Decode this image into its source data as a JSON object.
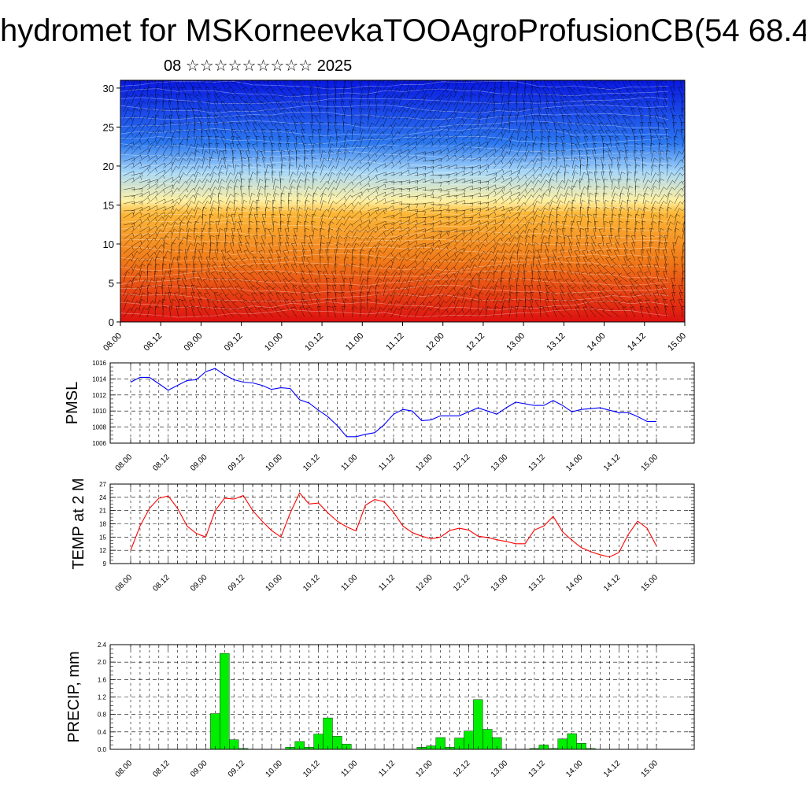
{
  "title": "hydromet for MSKorneevkaTOOAgroProfusionCB(54 68.4",
  "subtitle": "08 ☆☆☆☆☆☆☆☆☆ 2025",
  "chart_data": [
    {
      "type": "heatmap",
      "title": "",
      "x_tick_labels": [
        "08.00",
        "08.12",
        "09.00",
        "09.12",
        "10.00",
        "10.12",
        "11.00",
        "11.12",
        "12.00",
        "12.12",
        "13.00",
        "13.12",
        "14.00",
        "14.12",
        "15.00"
      ],
      "ylim": [
        0,
        31
      ],
      "y_ticks": [
        0,
        5,
        10,
        15,
        20,
        25,
        30
      ],
      "colormap": [
        "#dd1010",
        "#f07818",
        "#fcb838",
        "#fff0a0",
        "#a8d8f8",
        "#2c78f0",
        "#0818e0"
      ],
      "overlay": "wind barbs",
      "grid": false
    },
    {
      "type": "line",
      "ylabel": "PMSL",
      "ylim": [
        1006,
        1016
      ],
      "y_ticks": [
        1006,
        1008,
        1010,
        1012,
        1014,
        1016
      ],
      "x_tick_labels": [
        "08.00",
        "08.12",
        "09.00",
        "09.12",
        "10.00",
        "10.12",
        "11.00",
        "11.12",
        "12.00",
        "12.12",
        "13.00",
        "13.12",
        "14.00",
        "14.12",
        "15.00"
      ],
      "color": "#0000ff",
      "grid": true,
      "x": [
        0,
        3,
        6,
        9,
        12,
        15,
        18,
        21,
        24,
        27,
        30,
        33,
        36,
        39,
        42,
        45,
        48,
        51,
        54,
        57,
        60,
        63,
        66,
        69,
        72,
        75,
        78,
        81,
        84,
        87,
        90,
        93,
        96,
        99,
        102,
        105,
        108,
        111,
        114,
        117,
        120,
        123,
        126,
        129,
        132,
        135,
        138,
        141,
        144,
        147,
        150,
        153,
        156,
        159,
        162,
        165,
        168
      ],
      "y": [
        1013.6,
        1014.2,
        1014.2,
        1013.4,
        1012.6,
        1013.2,
        1013.8,
        1013.9,
        1014.9,
        1015.3,
        1014.5,
        1013.9,
        1013.6,
        1013.5,
        1013.2,
        1012.7,
        1012.9,
        1012.8,
        1011.4,
        1011.0,
        1010.1,
        1009.3,
        1008.2,
        1006.8,
        1006.8,
        1007.1,
        1007.3,
        1008.3,
        1009.6,
        1010.2,
        1010.0,
        1008.8,
        1008.9,
        1009.4,
        1009.4,
        1009.4,
        1009.9,
        1010.4,
        1010.0,
        1009.6,
        1010.4,
        1011.1,
        1010.9,
        1010.7,
        1010.7,
        1011.3,
        1010.7,
        1009.9,
        1010.2,
        1010.3,
        1010.4,
        1010.1,
        1009.8,
        1009.8,
        1009.3,
        1008.7,
        1008.7
      ]
    },
    {
      "type": "line",
      "ylabel": "TEMP at 2 M",
      "ylim": [
        9,
        27
      ],
      "y_ticks": [
        9,
        12,
        15,
        18,
        21,
        24,
        27
      ],
      "x_tick_labels": [
        "08.00",
        "08.12",
        "09.00",
        "09.12",
        "10.00",
        "10.12",
        "11.00",
        "11.12",
        "12.00",
        "12.12",
        "13.00",
        "13.12",
        "14.00",
        "14.12",
        "15.00"
      ],
      "color": "#ff0000",
      "grid": true,
      "x": [
        0,
        3,
        6,
        9,
        12,
        15,
        18,
        21,
        24,
        27,
        30,
        33,
        36,
        39,
        42,
        45,
        48,
        51,
        54,
        57,
        60,
        63,
        66,
        69,
        72,
        75,
        78,
        81,
        84,
        87,
        90,
        93,
        96,
        99,
        102,
        105,
        108,
        111,
        114,
        117,
        120,
        123,
        126,
        129,
        132,
        135,
        138,
        141,
        144,
        147,
        150,
        153,
        156,
        159,
        162,
        165,
        168
      ],
      "y": [
        12.0,
        17.5,
        21.5,
        23.8,
        24.3,
        21.5,
        17.5,
        15.8,
        15.0,
        21.0,
        23.8,
        23.6,
        24.4,
        21.0,
        18.6,
        16.5,
        15.0,
        20.5,
        25.0,
        22.5,
        22.7,
        20.5,
        18.6,
        17.3,
        16.4,
        22.2,
        23.5,
        23.0,
        20.6,
        17.5,
        16.0,
        15.2,
        14.6,
        15.0,
        16.5,
        17.0,
        16.6,
        15.2,
        14.9,
        14.4,
        14.0,
        13.5,
        13.5,
        16.6,
        17.5,
        19.7,
        16.2,
        14.3,
        12.6,
        11.7,
        11.0,
        10.5,
        11.5,
        15.6,
        18.6,
        17.0,
        13.0
      ]
    },
    {
      "type": "bar",
      "ylabel": "PRECIP, mm",
      "ylim": [
        0,
        2.4
      ],
      "y_ticks": [
        0.0,
        0.4,
        0.8,
        1.2,
        1.6,
        2.0,
        2.4
      ],
      "y_tick_labels": [
        "0.0",
        "0.4",
        "0.8",
        "1.2",
        "1.6",
        "2.0",
        "2.4"
      ],
      "x_tick_labels": [
        "08.00",
        "08.12",
        "09.00",
        "09.12",
        "10.00",
        "10.12",
        "11.00",
        "11.12",
        "12.00",
        "12.12",
        "13.00",
        "13.12",
        "14.00",
        "14.12",
        "15.00"
      ],
      "color": "#00ee00",
      "grid": true,
      "bar_width_hours": 3,
      "x": [
        27,
        30,
        33,
        36,
        51,
        54,
        57,
        60,
        63,
        66,
        69,
        93,
        96,
        99,
        102,
        105,
        108,
        111,
        114,
        117,
        129,
        132,
        135,
        138,
        141,
        144,
        147
      ],
      "values": [
        0.82,
        2.2,
        0.22,
        0.02,
        0.05,
        0.18,
        0.05,
        0.35,
        0.72,
        0.3,
        0.12,
        0.05,
        0.08,
        0.27,
        0.05,
        0.26,
        0.42,
        1.14,
        0.46,
        0.27,
        0.02,
        0.1,
        0.02,
        0.24,
        0.36,
        0.14,
        0.02
      ]
    }
  ]
}
